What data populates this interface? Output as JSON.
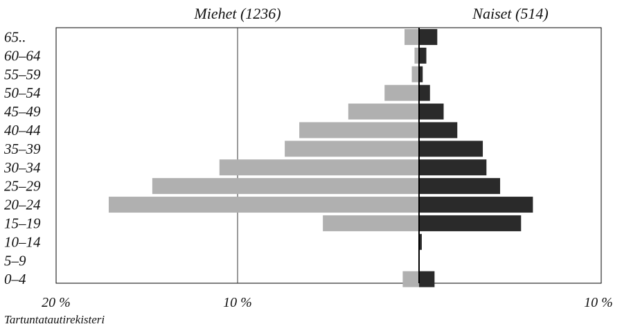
{
  "chart_data": {
    "type": "bar",
    "orientation": "horizontal",
    "layout": "population-pyramid",
    "title": "",
    "categories": [
      "65..",
      "60-64",
      "55-59",
      "50-54",
      "45-49",
      "40-44",
      "35-39",
      "30-34",
      "25-29",
      "20-24",
      "15-19",
      "10-14",
      "5-9",
      "0-4"
    ],
    "series": [
      {
        "name": "Miehet (1236)",
        "side": "left",
        "color": "#b0b0b0",
        "values": [
          0.8,
          0.25,
          0.4,
          1.9,
          3.9,
          6.6,
          7.4,
          11.0,
          14.7,
          17.1,
          5.3,
          0.0,
          0.0,
          0.9
        ]
      },
      {
        "name": "Naiset (514)",
        "side": "right",
        "color": "#2a2a2a",
        "values": [
          1.0,
          0.4,
          0.2,
          0.6,
          1.35,
          2.1,
          3.5,
          3.7,
          4.45,
          6.25,
          5.6,
          0.15,
          0.0,
          0.85
        ]
      }
    ],
    "left_axis": {
      "range": [
        0,
        20
      ],
      "ticks": [
        20,
        10
      ],
      "tick_labels": [
        "20 %",
        "10 %"
      ]
    },
    "right_axis": {
      "range": [
        0,
        10
      ],
      "ticks": [
        10
      ],
      "tick_labels": [
        "10 %"
      ]
    },
    "gridlines": [
      {
        "side": "left",
        "value": 10
      }
    ],
    "source": "Tartuntatautirekisteri"
  }
}
